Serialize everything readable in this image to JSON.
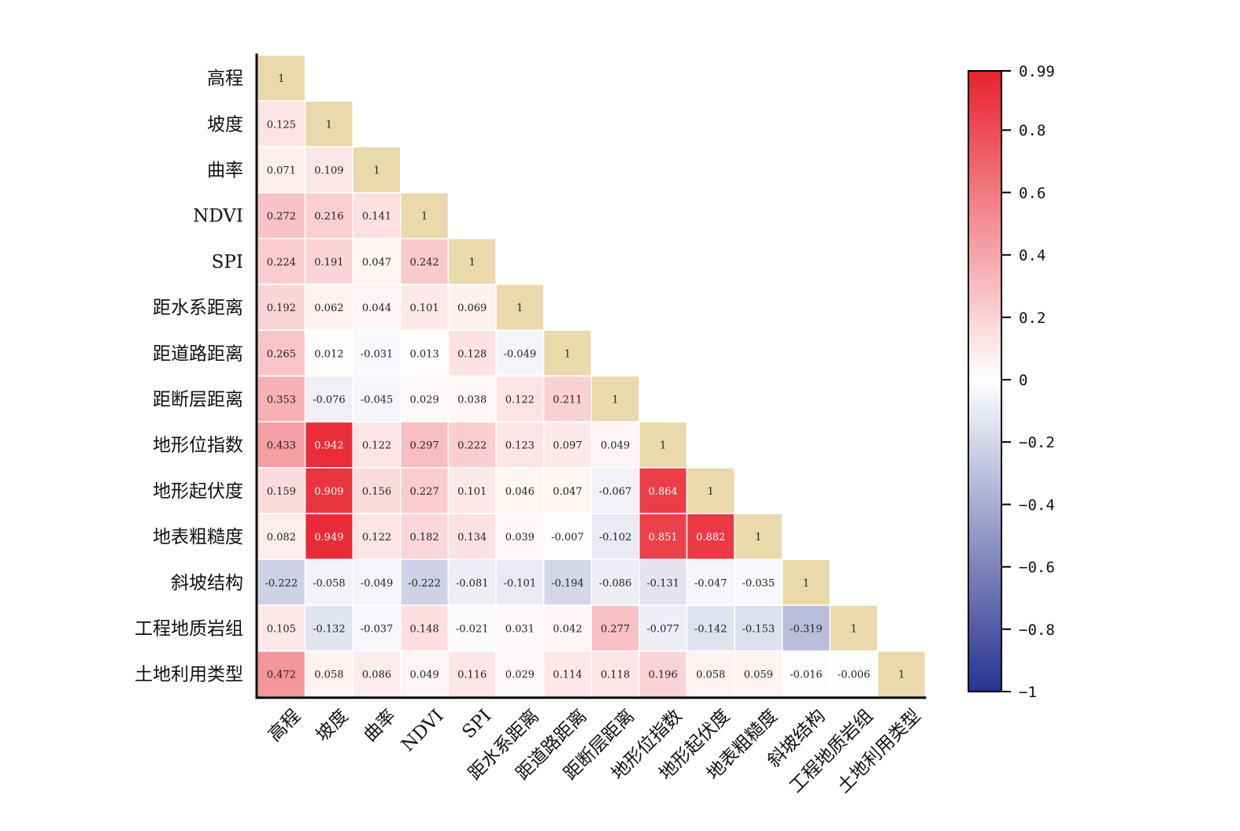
{
  "chart_data": {
    "type": "heatmap",
    "title": "",
    "xlabel": "",
    "ylabel": "",
    "labels": [
      "高程",
      "坡度",
      "曲率",
      "NDVI",
      "SPI",
      "距水系距离",
      "距道路距离",
      "距断层距离",
      "地形位指数",
      "地形起伏度",
      "地表粗糙度",
      "斜坡结构",
      "工程地质岩组",
      "土地利用类型"
    ],
    "matrix": [
      [
        1
      ],
      [
        0.125,
        1
      ],
      [
        0.071,
        0.109,
        1
      ],
      [
        0.272,
        0.216,
        0.141,
        1
      ],
      [
        0.224,
        0.191,
        0.047,
        0.242,
        1
      ],
      [
        0.192,
        0.062,
        0.044,
        0.101,
        0.069,
        1
      ],
      [
        0.265,
        0.012,
        -0.031,
        0.013,
        0.128,
        -0.049,
        1
      ],
      [
        0.353,
        -0.076,
        -0.045,
        0.029,
        0.038,
        0.122,
        0.211,
        1
      ],
      [
        0.433,
        0.942,
        0.122,
        0.297,
        0.222,
        0.123,
        0.097,
        0.049,
        1
      ],
      [
        0.159,
        0.909,
        0.156,
        0.227,
        0.101,
        0.046,
        0.047,
        -0.067,
        0.864,
        1
      ],
      [
        0.082,
        0.949,
        0.122,
        0.182,
        0.134,
        0.039,
        -0.007,
        -0.102,
        0.851,
        0.882,
        1
      ],
      [
        -0.222,
        -0.058,
        -0.049,
        -0.222,
        -0.081,
        -0.101,
        -0.194,
        -0.086,
        -0.131,
        -0.047,
        -0.035,
        1
      ],
      [
        0.105,
        -0.132,
        -0.037,
        0.148,
        -0.021,
        0.031,
        0.042,
        0.277,
        -0.077,
        -0.142,
        -0.153,
        -0.319,
        1
      ],
      [
        0.472,
        0.058,
        0.086,
        0.049,
        0.116,
        0.029,
        0.114,
        0.118,
        0.196,
        0.058,
        0.059,
        -0.016,
        -0.006,
        1
      ]
    ],
    "matrix_text": [
      [
        "1"
      ],
      [
        "0.125",
        "1"
      ],
      [
        "0.071",
        "0.109",
        "1"
      ],
      [
        "0.272",
        "0.216",
        "0.141",
        "1"
      ],
      [
        "0.224",
        "0.191",
        "0.047",
        "0.242",
        "1"
      ],
      [
        "0.192",
        "0.062",
        "0.044",
        "0.101",
        "0.069",
        "1"
      ],
      [
        "0.265",
        "0.012",
        "-0.031",
        "0.013",
        "0.128",
        "-0.049",
        "1"
      ],
      [
        "0.353",
        "-0.076",
        "-0.045",
        "0.029",
        "0.038",
        "0.122",
        "0.211",
        "1"
      ],
      [
        "0.433",
        "0.942",
        "0.122",
        "0.297",
        "0.222",
        "0.123",
        "0.097",
        "0.049",
        "1"
      ],
      [
        "0.159",
        "0.909",
        "0.156",
        "0.227",
        "0.101",
        "0.046",
        "0.047",
        "-0.067",
        "0.864",
        "1"
      ],
      [
        "0.082",
        "0.949",
        "0.122",
        "0.182",
        "0.134",
        "0.039",
        "-0.007",
        "-0.102",
        "0.851",
        "0.882",
        "1"
      ],
      [
        "-0.222",
        "-0.058",
        "-0.049",
        "-0.222",
        "-0.081",
        "-0.101",
        "-0.194",
        "-0.086",
        "-0.131",
        "-0.047",
        "-0.035",
        "1"
      ],
      [
        "0.105",
        "-0.132",
        "-0.037",
        "0.148",
        "-0.021",
        "0.031",
        "0.042",
        "0.277",
        "-0.077",
        "-0.142",
        "-0.153",
        "-0.319",
        "1"
      ],
      [
        "0.472",
        "0.058",
        "0.086",
        "0.049",
        "0.116",
        "0.029",
        "0.114",
        "0.118",
        "0.196",
        "0.058",
        "0.059",
        "-0.016",
        "-0.006",
        "1"
      ]
    ],
    "diagonal_color": "#e9d9ab",
    "colorscale": {
      "vmin": -1,
      "vmax": 0.99,
      "positive_color": "#e8222e",
      "zero_color": "#ffffff",
      "negative_color": "#27338f",
      "ticks": [
        0.99,
        0.8,
        0.6,
        0.4,
        0.2,
        0,
        -0.2,
        -0.4,
        -0.6,
        -0.8,
        -1
      ],
      "tick_labels": [
        "0.99",
        "0.8",
        "0.6",
        "0.4",
        "0.2",
        "0",
        "−0.2",
        "−0.4",
        "−0.6",
        "−0.8",
        "−1"
      ]
    },
    "legend_position": "right"
  }
}
